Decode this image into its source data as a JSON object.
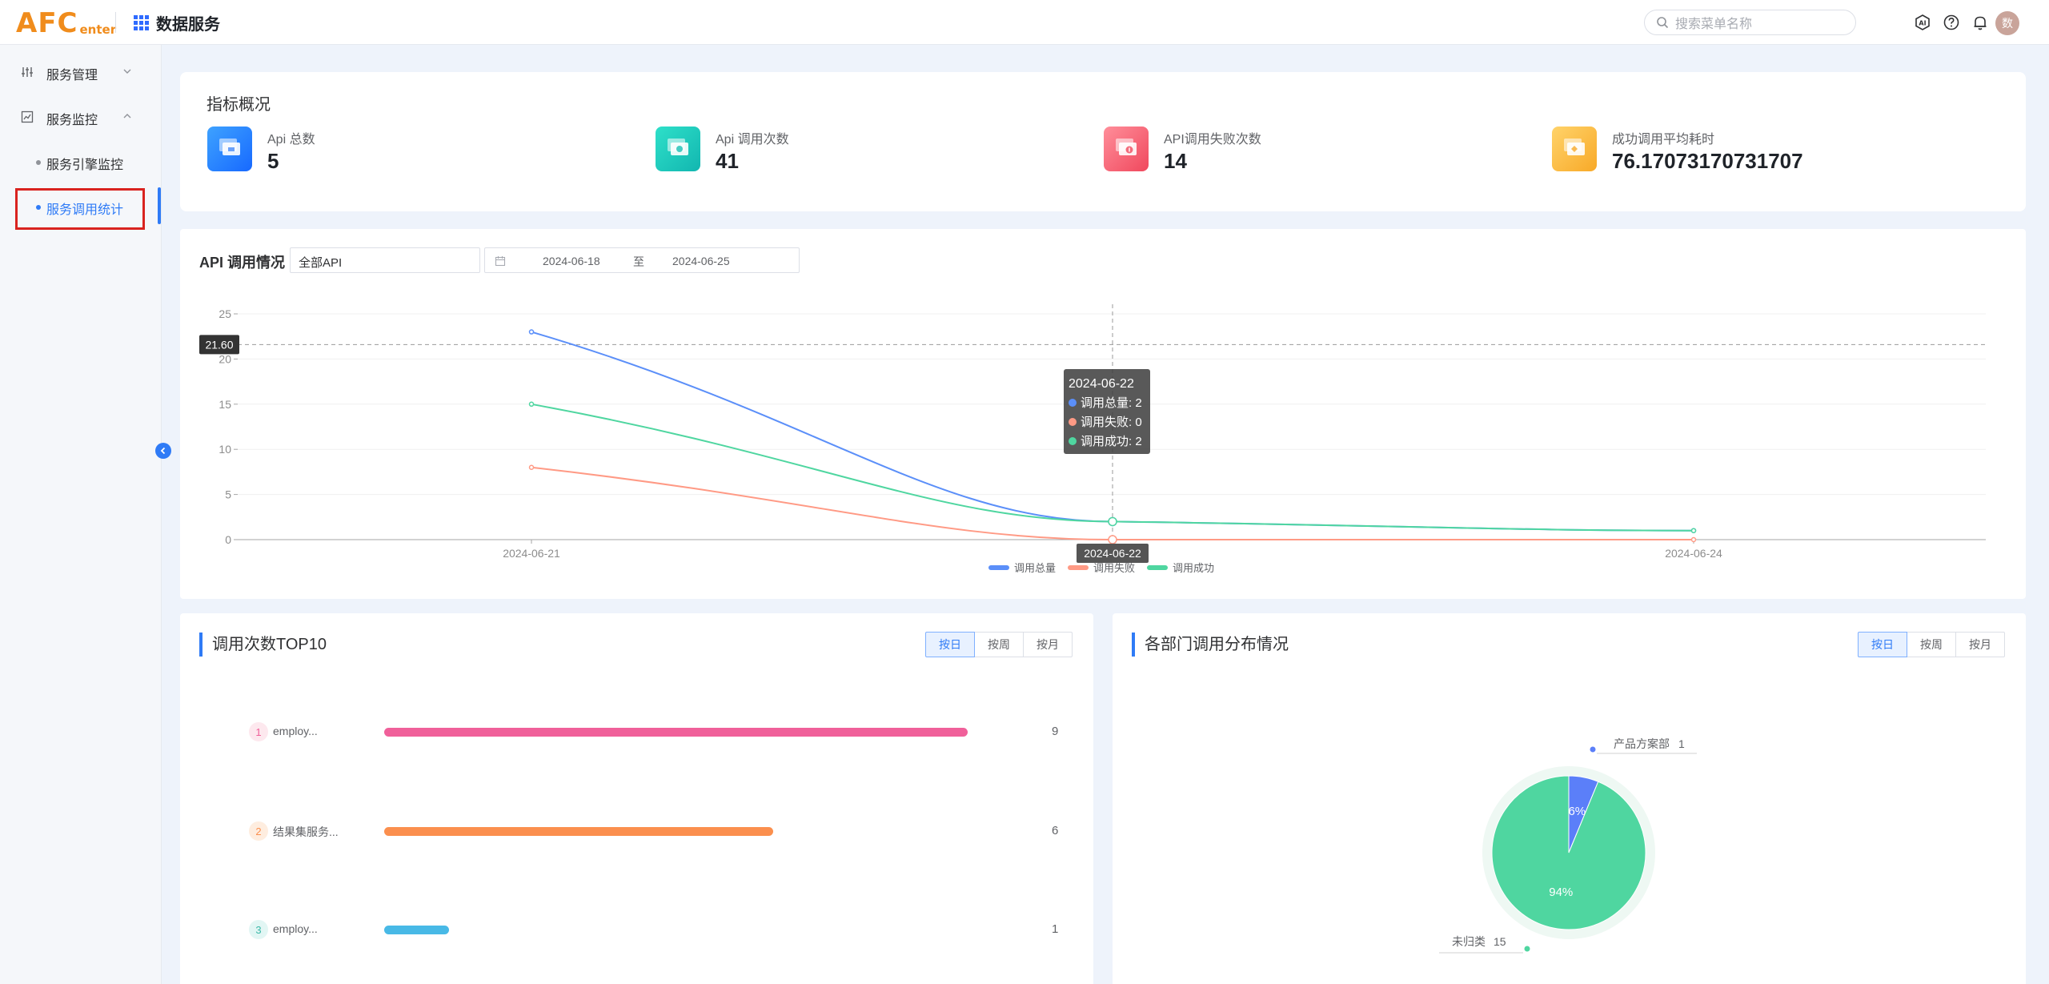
{
  "header": {
    "logo_big": "AFC",
    "logo_small": "enter",
    "app_title": "数据服务",
    "search_placeholder": "搜索菜单名称",
    "avatar_text": "数"
  },
  "sidebar": {
    "menus": [
      {
        "label": "服务管理",
        "icon": "sliders-icon",
        "expanded": false
      },
      {
        "label": "服务监控",
        "icon": "chart-icon",
        "expanded": true
      }
    ],
    "sub_items": [
      {
        "label": "服务引擎监控",
        "active": false
      },
      {
        "label": "服务调用统计",
        "active": true
      }
    ]
  },
  "overview": {
    "title": "指标概况",
    "stats": [
      {
        "label": "Api 总数",
        "value": "5",
        "color_from": "#3ea2ff",
        "color_to": "#1769ff"
      },
      {
        "label": "Api 调用次数",
        "value": "41",
        "color_from": "#2ee0c9",
        "color_to": "#12b6b0"
      },
      {
        "label": "API调用失败次数",
        "value": "14",
        "color_from": "#ff8e9a",
        "color_to": "#f0485d"
      },
      {
        "label": "成功调用平均耗时",
        "value": "76.17073170731707",
        "color_from": "#ffd36a",
        "color_to": "#f8a928"
      }
    ]
  },
  "api_chart": {
    "title": "API 调用情况",
    "api_select_value": "全部API",
    "date_start": "2024-06-18",
    "date_to": "至",
    "date_end": "2024-06-25",
    "crosshair_y_label": "21.60",
    "crosshair_x_label": "2024-06-22",
    "tooltip": {
      "title": "2024-06-22",
      "rows": [
        {
          "label": "调用总量: 2",
          "color": "#5b8ff9"
        },
        {
          "label": "调用失败: 0",
          "color": "#ff9a85"
        },
        {
          "label": "调用成功: 2",
          "color": "#4fd6a0"
        }
      ]
    }
  },
  "chart_data": {
    "type": "line",
    "categories": [
      "2024-06-21",
      "2024-06-22",
      "2024-06-24"
    ],
    "series": [
      {
        "name": "调用总量",
        "values": [
          23,
          2,
          1
        ],
        "color": "#5b8ff9"
      },
      {
        "name": "调用失败",
        "values": [
          8,
          0,
          0
        ],
        "color": "#ff9a85"
      },
      {
        "name": "调用成功",
        "values": [
          15,
          2,
          1
        ],
        "color": "#4fd6a0"
      }
    ],
    "y_ticks": [
      "0",
      "5",
      "10",
      "15",
      "20",
      "25"
    ],
    "ylim": [
      0,
      25
    ],
    "legend": "bottom-center"
  },
  "top10": {
    "title": "调用次数TOP10",
    "buttons": [
      "按日",
      "按周",
      "按月"
    ],
    "active_button": 0,
    "max": 9,
    "rows": [
      {
        "rank": "1",
        "name": "employ...",
        "value": 9,
        "count": "9",
        "color": "#f0609a",
        "badge_bg": "#fde8ee",
        "badge_fg": "#f0609a"
      },
      {
        "rank": "2",
        "name": "结果集服务...",
        "value": 6,
        "count": "6",
        "color": "#fb8f4e",
        "badge_bg": "#feeddf",
        "badge_fg": "#fb8f4e"
      },
      {
        "rank": "3",
        "name": "employ...",
        "value": 1,
        "count": "1",
        "color": "#48b9e6",
        "badge_bg": "#e2f6f4",
        "badge_fg": "#3cb9a8"
      }
    ]
  },
  "dept": {
    "title": "各部门调用分布情况",
    "buttons": [
      "按日",
      "按周",
      "按月"
    ],
    "active_button": 0,
    "slices": [
      {
        "name": "产品方案部",
        "value": 1,
        "count_label": "1",
        "percent_label": "6%",
        "color": "#5b7ff9"
      },
      {
        "name": "未归类",
        "value": 15,
        "count_label": "15",
        "percent_label": "94%",
        "color": "#4fd6a0"
      }
    ]
  }
}
